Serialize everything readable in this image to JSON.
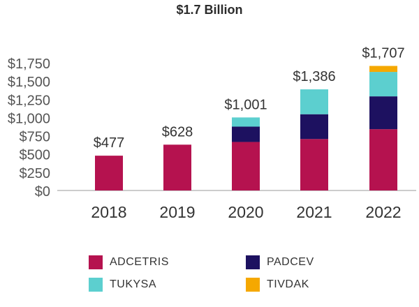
{
  "chart_data": {
    "type": "bar",
    "stacked": true,
    "title": "$1.7 Billion",
    "categories": [
      "2018",
      "2019",
      "2020",
      "2021",
      "2022"
    ],
    "totals": [
      477,
      628,
      1001,
      1386,
      1707
    ],
    "total_labels": [
      "$477",
      "$628",
      "$1,001",
      "$1,386",
      "$1,707"
    ],
    "series": [
      {
        "name": "ADCETRIS",
        "color": "#b5124f",
        "values": [
          477,
          628,
          665,
          705,
          840
        ]
      },
      {
        "name": "PADCEV",
        "color": "#1d1160",
        "values": [
          0,
          0,
          210,
          340,
          450
        ]
      },
      {
        "name": "TUKYSA",
        "color": "#5ccfcf",
        "values": [
          0,
          0,
          126,
          341,
          335
        ]
      },
      {
        "name": "TIVDAK",
        "color": "#f5a800",
        "values": [
          0,
          0,
          0,
          0,
          82
        ]
      }
    ],
    "ylim": [
      0,
      1750
    ],
    "y_ticks": [
      0,
      250,
      500,
      750,
      1000,
      1250,
      1500,
      1750
    ],
    "y_tick_labels": [
      "$0",
      "$250",
      "$500",
      "$750",
      "$1,000",
      "$1,250",
      "$1,500",
      "$1,750"
    ],
    "grid": false,
    "legend_position": "bottom"
  }
}
